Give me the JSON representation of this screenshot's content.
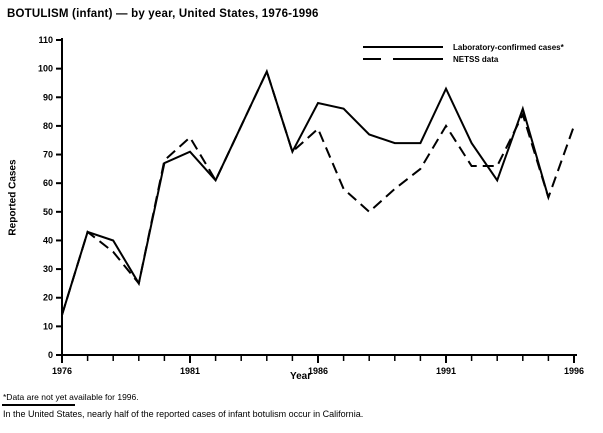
{
  "header": {
    "title": "BOTULISM (infant) — by year, United States, 1976-1996"
  },
  "legend": {
    "solid_label": "Laboratory-confirmed cases*",
    "dashed_label": "NETSS data"
  },
  "footnotes": {
    "asterisk_note": "*Data are not yet available for 1996.",
    "california_note": "In the United States, nearly half of the reported cases of infant botulism occur in California."
  },
  "chart_data": {
    "type": "line",
    "title": "BOTULISM (infant) — by year, United States, 1976-1996",
    "xlabel": "Year",
    "ylabel": "Reported Cases",
    "x": [
      1976,
      1977,
      1978,
      1979,
      1980,
      1981,
      1982,
      1983,
      1984,
      1985,
      1986,
      1987,
      1988,
      1989,
      1990,
      1991,
      1992,
      1993,
      1994,
      1995,
      1996
    ],
    "series": [
      {
        "name": "Laboratory-confirmed cases*",
        "style": "solid",
        "values": [
          14,
          43,
          40,
          25,
          67,
          71,
          61,
          80,
          99,
          71,
          88,
          86,
          77,
          74,
          74,
          93,
          74,
          61,
          86,
          55,
          null
        ]
      },
      {
        "name": "NETSS data",
        "style": "dashed",
        "values": [
          14,
          43,
          36,
          25,
          68,
          76,
          61,
          80,
          99,
          71,
          79,
          58,
          50,
          58,
          65,
          80,
          66,
          66,
          84,
          55,
          80
        ]
      }
    ],
    "ylim": [
      0,
      110
    ],
    "y_ticks": [
      0,
      10,
      20,
      30,
      40,
      50,
      60,
      70,
      80,
      90,
      100,
      110
    ],
    "x_major_ticks": [
      1976,
      1981,
      1986,
      1991,
      1996
    ],
    "grid": false,
    "legend_position": "top-right-inside",
    "colors": {
      "line": "#000000",
      "background": "#ffffff"
    }
  }
}
